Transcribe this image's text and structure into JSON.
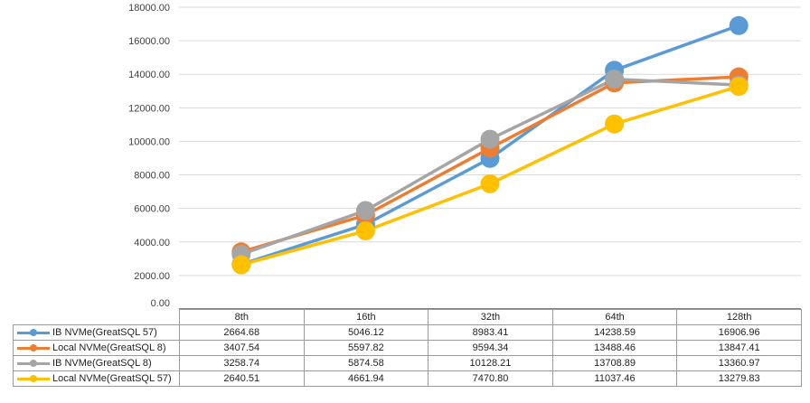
{
  "chart_data": {
    "type": "line",
    "categories": [
      "8th",
      "16th",
      "32th",
      "64th",
      "128th"
    ],
    "ylim": [
      0,
      18000
    ],
    "y_ticks": [
      "0.00",
      "2000.00",
      "4000.00",
      "6000.00",
      "8000.00",
      "10000.00",
      "12000.00",
      "14000.00",
      "16000.00",
      "18000.00"
    ],
    "grid": true,
    "legend": "data table below chart",
    "series": [
      {
        "name": "IB NVMe(GreatSQL 57)",
        "color": "#5b9bd5",
        "values": [
          2664.68,
          5046.12,
          8983.41,
          14238.59,
          16906.96
        ],
        "labels": [
          "2664.68",
          "5046.12",
          "8983.41",
          "14238.59",
          "16906.96"
        ]
      },
      {
        "name": "Local NVMe(GreatSQL 8)",
        "color": "#ed7d31",
        "values": [
          3407.54,
          5597.82,
          9594.34,
          13488.46,
          13847.41
        ],
        "labels": [
          "3407.54",
          "5597.82",
          "9594.34",
          "13488.46",
          "13847.41"
        ]
      },
      {
        "name": "IB NVMe(GreatSQL 8)",
        "color": "#a5a5a5",
        "values": [
          3258.74,
          5874.58,
          10128.21,
          13708.89,
          13360.97
        ],
        "labels": [
          "3258.74",
          "5874.58",
          "10128.21",
          "13708.89",
          "13360.97"
        ]
      },
      {
        "name": "Local NVMe(GreatSQL 57)",
        "color": "#ffc000",
        "values": [
          2640.51,
          4661.94,
          7470.8,
          11037.46,
          13279.83
        ],
        "labels": [
          "2640.51",
          "4661.94",
          "7470.80",
          "11037.46",
          "13279.83"
        ]
      }
    ]
  }
}
